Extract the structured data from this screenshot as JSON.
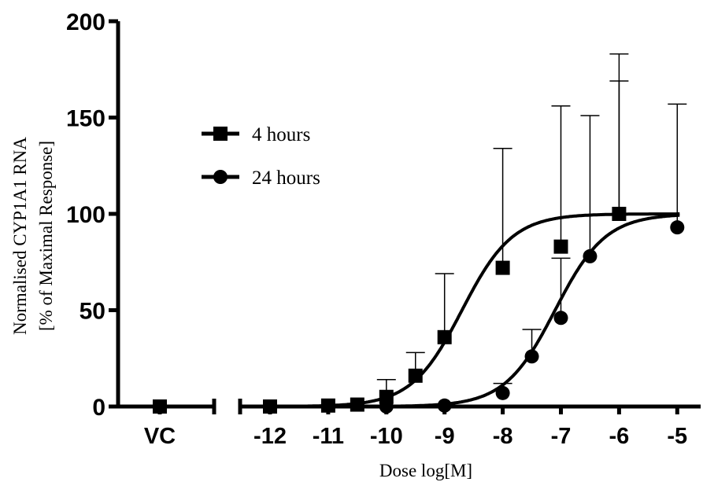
{
  "chart_data": {
    "type": "scatter",
    "title": "",
    "xlabel": "Dose log[M]",
    "ylabel_line1": "Normalised CYP1A1 RNA",
    "ylabel_line2": "[% of Maximal Response]",
    "ylim": [
      0,
      200
    ],
    "xlim": [
      -12.5,
      -4.8
    ],
    "yticks": [
      "0",
      "50",
      "100",
      "150",
      "200"
    ],
    "xticks": [
      "-12",
      "-11",
      "-10",
      "-9",
      "-8",
      "-7",
      "-6",
      "-5"
    ],
    "control_label": "VC",
    "grid": false,
    "legend_position": "upper-left",
    "series": [
      {
        "name": "4 hours",
        "marker": "square",
        "color": "#000000",
        "control": {
          "y": 0
        },
        "points": [
          {
            "x": -12,
            "y": 0
          },
          {
            "x": -11,
            "y": 0.5
          },
          {
            "x": -10.5,
            "y": 1
          },
          {
            "x": -10,
            "y": 5,
            "err": 9
          },
          {
            "x": -9.5,
            "y": 16,
            "err": 12
          },
          {
            "x": -9,
            "y": 36,
            "err": 33
          },
          {
            "x": -8,
            "y": 72,
            "err": 62
          },
          {
            "x": -7,
            "y": 83,
            "err": 73
          },
          {
            "x": -6,
            "y": 100,
            "err": 83
          }
        ],
        "fit": {
          "bottom": 0,
          "top": 100,
          "log_ec50": -8.7,
          "hill": 1
        }
      },
      {
        "name": "24 hours",
        "marker": "circle",
        "color": "#000000",
        "points": [
          {
            "x": -10,
            "y": 0
          },
          {
            "x": -9,
            "y": 0.5
          },
          {
            "x": -8,
            "y": 7,
            "err": 5
          },
          {
            "x": -7.5,
            "y": 26,
            "err": 14
          },
          {
            "x": -7,
            "y": 46,
            "err": 31
          },
          {
            "x": -6.5,
            "y": 78,
            "err": 73
          },
          {
            "x": -6,
            "y": 100,
            "err": 69
          },
          {
            "x": -5,
            "y": 93,
            "err": 64
          }
        ],
        "fit": {
          "bottom": 0,
          "top": 100,
          "log_ec50": -7.1,
          "hill": 1
        }
      }
    ]
  }
}
